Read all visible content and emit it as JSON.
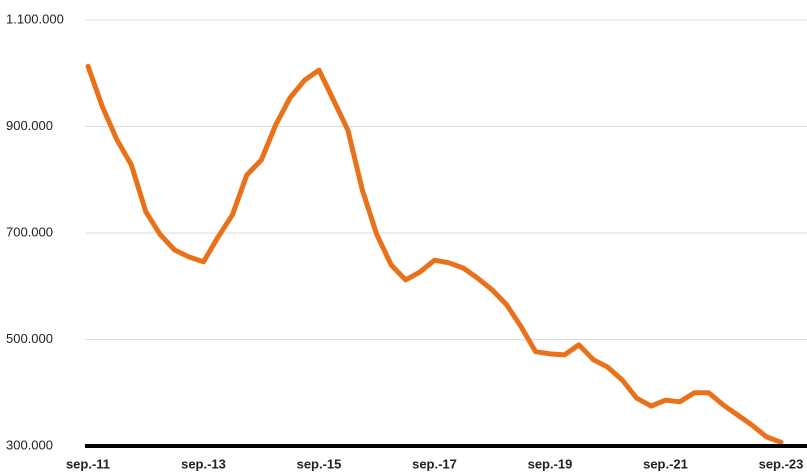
{
  "chart_data": {
    "type": "line",
    "categories": [
      "sep.-11",
      null,
      null,
      null,
      null,
      null,
      null,
      null,
      "sep.-13",
      null,
      null,
      null,
      null,
      null,
      null,
      null,
      "sep.-15",
      null,
      null,
      null,
      null,
      null,
      null,
      null,
      "sep.-17",
      null,
      null,
      null,
      null,
      null,
      null,
      null,
      "sep.-19",
      null,
      null,
      null,
      null,
      null,
      null,
      null,
      "sep.-21",
      null,
      null,
      null,
      null,
      null,
      null,
      null,
      "sep.-23"
    ],
    "series": [
      {
        "color": "#e8711a",
        "values": [
          1013000,
          937000,
          875000,
          828000,
          740000,
          697000,
          668000,
          655000,
          646000,
          692000,
          734000,
          809000,
          837000,
          903000,
          954000,
          987000,
          1006000,
          950000,
          893000,
          781000,
          697000,
          640000,
          612000,
          627000,
          649000,
          644000,
          634000,
          615000,
          593000,
          565000,
          524000,
          477000,
          473000,
          471000,
          490000,
          462000,
          448000,
          424000,
          390000,
          375000,
          386000,
          383000,
          400000,
          400000,
          377000,
          358000,
          339000,
          317000,
          307000
        ]
      }
    ],
    "ylim": [
      300000,
      1100000
    ],
    "yticks": [
      {
        "value": 300000,
        "label": "300.000"
      },
      {
        "value": 500000,
        "label": "500.000"
      },
      {
        "value": 700000,
        "label": "700.000"
      },
      {
        "value": 900000,
        "label": "900.000"
      },
      {
        "value": 1100000,
        "label": "1.100.000"
      }
    ],
    "grid": true
  }
}
